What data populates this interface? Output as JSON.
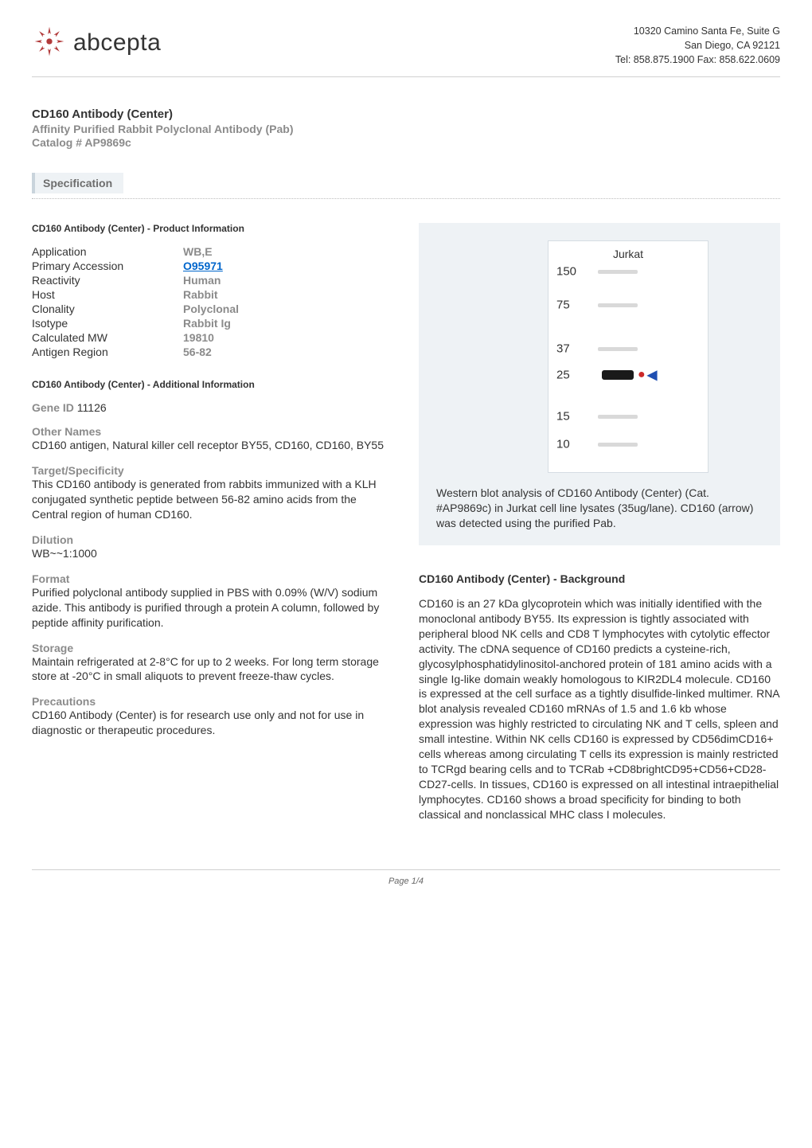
{
  "header": {
    "logo_text": "abcepta",
    "address_lines": [
      "10320 Camino Santa Fe, Suite G",
      "San Diego, CA 92121",
      "Tel: 858.875.1900 Fax: 858.622.0609"
    ]
  },
  "title": {
    "product_name": "CD160 Antibody (Center)",
    "subtitle": "Affinity Purified Rabbit Polyclonal Antibody (Pab)",
    "catalog": "Catalog # AP9869c"
  },
  "sections": {
    "specification_label": "Specification"
  },
  "left": {
    "product_info_head": "CD160 Antibody (Center) - Product Information",
    "kv": {
      "application_k": "Application",
      "application_v": "WB,E",
      "primary_acc_k": "Primary Accession",
      "primary_acc_v": "O95971",
      "reactivity_k": "Reactivity",
      "reactivity_v": "Human",
      "host_k": "Host",
      "host_v": "Rabbit",
      "clonality_k": "Clonality",
      "clonality_v": "Polyclonal",
      "isotype_k": "Isotype",
      "isotype_v": "Rabbit Ig",
      "calc_mw_k": "Calculated MW",
      "calc_mw_v": "19810",
      "antigen_region_k": "Antigen Region",
      "antigen_region_v": "56-82"
    },
    "additional_info_head": "CD160 Antibody (Center) - Additional Information",
    "gene_id_label": "Gene ID",
    "gene_id_value": "11126",
    "other_names_label": "Other Names",
    "other_names_value": "CD160 antigen, Natural killer cell receptor BY55, CD160, CD160, BY55",
    "target_label": "Target/Specificity",
    "target_value": "This CD160 antibody is generated from rabbits immunized with a KLH conjugated synthetic peptide between 56-82 amino acids from the Central region of human CD160.",
    "dilution_label": "Dilution",
    "dilution_value": "WB~~1:1000",
    "format_label": "Format",
    "format_value": "Purified polyclonal antibody supplied in PBS with 0.09% (W/V) sodium azide. This antibody is purified through a protein A column, followed by peptide affinity purification.",
    "storage_label": "Storage",
    "storage_value": "Maintain refrigerated at 2-8°C for up to 2 weeks. For long term storage store at -20°C in small aliquots to prevent freeze-thaw cycles.",
    "precautions_label": "Precautions",
    "precautions_value": "CD160 Antibody (Center) is for research use only and not for use in diagnostic or therapeutic procedures."
  },
  "right": {
    "blot": {
      "lane_label": "Jurkat",
      "markers": [
        {
          "label": "150",
          "top_pct": 3
        },
        {
          "label": "75",
          "top_pct": 20
        },
        {
          "label": "37",
          "top_pct": 42
        },
        {
          "label": "25",
          "top_pct": 55
        },
        {
          "label": "15",
          "top_pct": 76
        },
        {
          "label": "10",
          "top_pct": 90
        }
      ],
      "grey_bands_top_pct": [
        3,
        20,
        42,
        76,
        90
      ],
      "dark_band_top_pct": 55,
      "arrow_red_top_pct": 55,
      "arrow_blue_top_pct": 55
    },
    "caption": " Western blot analysis of CD160 Antibody (Center) (Cat. #AP9869c) in Jurkat cell line lysates (35ug/lane). CD160 (arrow) was detected using the purified Pab.",
    "background_head": "CD160 Antibody (Center) - Background",
    "background_text": " CD160 is an 27 kDa glycoprotein which was initially identified with the monoclonal antibody BY55. Its expression is tightly associated with peripheral blood NK cells and CD8 T lymphocytes with cytolytic effector activity. The cDNA sequence of CD160 predicts a cysteine-rich, glycosylphosphatidylinositol-anchored protein of 181 amino acids with a single Ig-like domain weakly homologous to KIR2DL4 molecule. CD160 is expressed at the cell surface as a tightly disulfide-linked multimer. RNA blot analysis revealed CD160 mRNAs of 1.5 and 1.6 kb whose expression was highly restricted to circulating NK and T cells, spleen and small intestine. Within NK cells CD160 is expressed by CD56dimCD16+ cells whereas among circulating T cells its expression is mainly restricted to TCRgd bearing cells and to TCRab +CD8brightCD95+CD56+CD28-CD27-cells. In tissues, CD160 is expressed on all intestinal intraepithelial lymphocytes. CD160 shows a broad specificity for binding to both classical and nonclassical MHC class I molecules."
  },
  "footer": {
    "page_label": "Page 1/4"
  },
  "colors": {
    "grey_text": "#8b8b8b",
    "link_blue": "#0066cc",
    "panel_bg": "#eef2f5",
    "border_grey": "#d0d0d0"
  }
}
